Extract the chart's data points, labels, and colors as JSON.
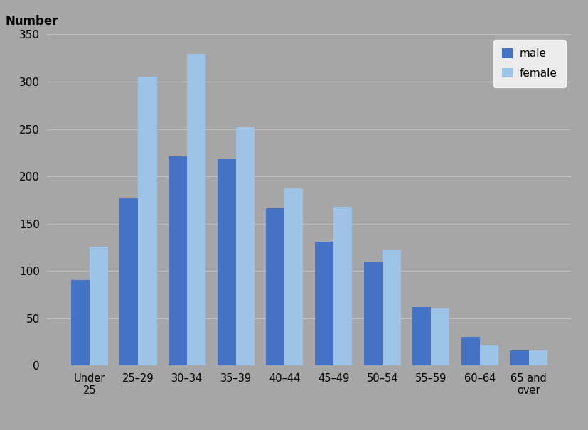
{
  "categories": [
    "Under\n25",
    "25–29",
    "30–34",
    "35–39",
    "40–44",
    "45–49",
    "50–54",
    "55–59",
    "60–64",
    "65 and\nover"
  ],
  "male_values": [
    90,
    177,
    221,
    218,
    166,
    131,
    110,
    62,
    30,
    16
  ],
  "female_values": [
    126,
    305,
    329,
    252,
    187,
    168,
    122,
    60,
    21,
    16
  ],
  "male_color": "#4472C4",
  "female_color": "#9DC3E6",
  "background_color": "#A6A6A6",
  "ylabel": "Number",
  "ylim": [
    0,
    350
  ],
  "yticks": [
    0,
    50,
    100,
    150,
    200,
    250,
    300,
    350
  ],
  "legend_labels": [
    "male",
    "female"
  ],
  "grid_color": "#C0C0C0",
  "bar_width": 0.38
}
